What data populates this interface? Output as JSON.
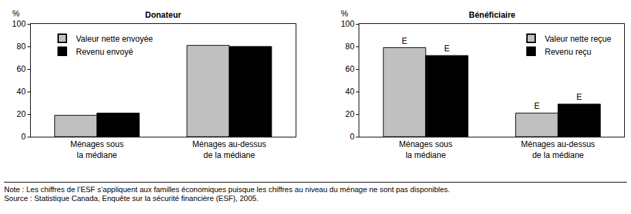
{
  "chart_data": [
    {
      "type": "bar",
      "title": "Donateur",
      "y_label": "%",
      "categories": [
        "Ménages sous\nla médiane",
        "Ménages au-dessus\nde la médiane"
      ],
      "series": [
        {
          "name": "Valeur nette envoyée",
          "color": "#c0c0c0",
          "values": [
            19,
            81
          ]
        },
        {
          "name": "Revenu envoyé",
          "color": "#000000",
          "values": [
            21,
            80
          ]
        }
      ],
      "ylim": [
        0,
        100
      ],
      "yticks": [
        0,
        20,
        40,
        60,
        80,
        100
      ],
      "grid": false,
      "legend": "upper left"
    },
    {
      "type": "bar",
      "title": "Bénéficiaire",
      "y_label": "%",
      "categories": [
        "Ménages sous\nla médiane",
        "Ménages au-dessus\nde la médiane"
      ],
      "series": [
        {
          "name": "Valeur nette reçue",
          "color": "#c0c0c0",
          "values": [
            79,
            21
          ],
          "bar_notes": [
            "E",
            "E"
          ]
        },
        {
          "name": "Revenu reçu",
          "color": "#000000",
          "values": [
            72,
            29
          ],
          "bar_notes": [
            "E",
            "E"
          ]
        }
      ],
      "ylim": [
        0,
        100
      ],
      "yticks": [
        0,
        20,
        40,
        60,
        80,
        100
      ],
      "grid": false,
      "legend": "upper right"
    }
  ],
  "footer": [
    "Note : Les chiffres de l’ESF s’appliquent aux familles économiques puisque les chiffres au niveau du ménage ne sont pas disponibles.",
    "Source : Statistique Canada, Enquête sur la sécurité financière (ESF), 2005."
  ]
}
